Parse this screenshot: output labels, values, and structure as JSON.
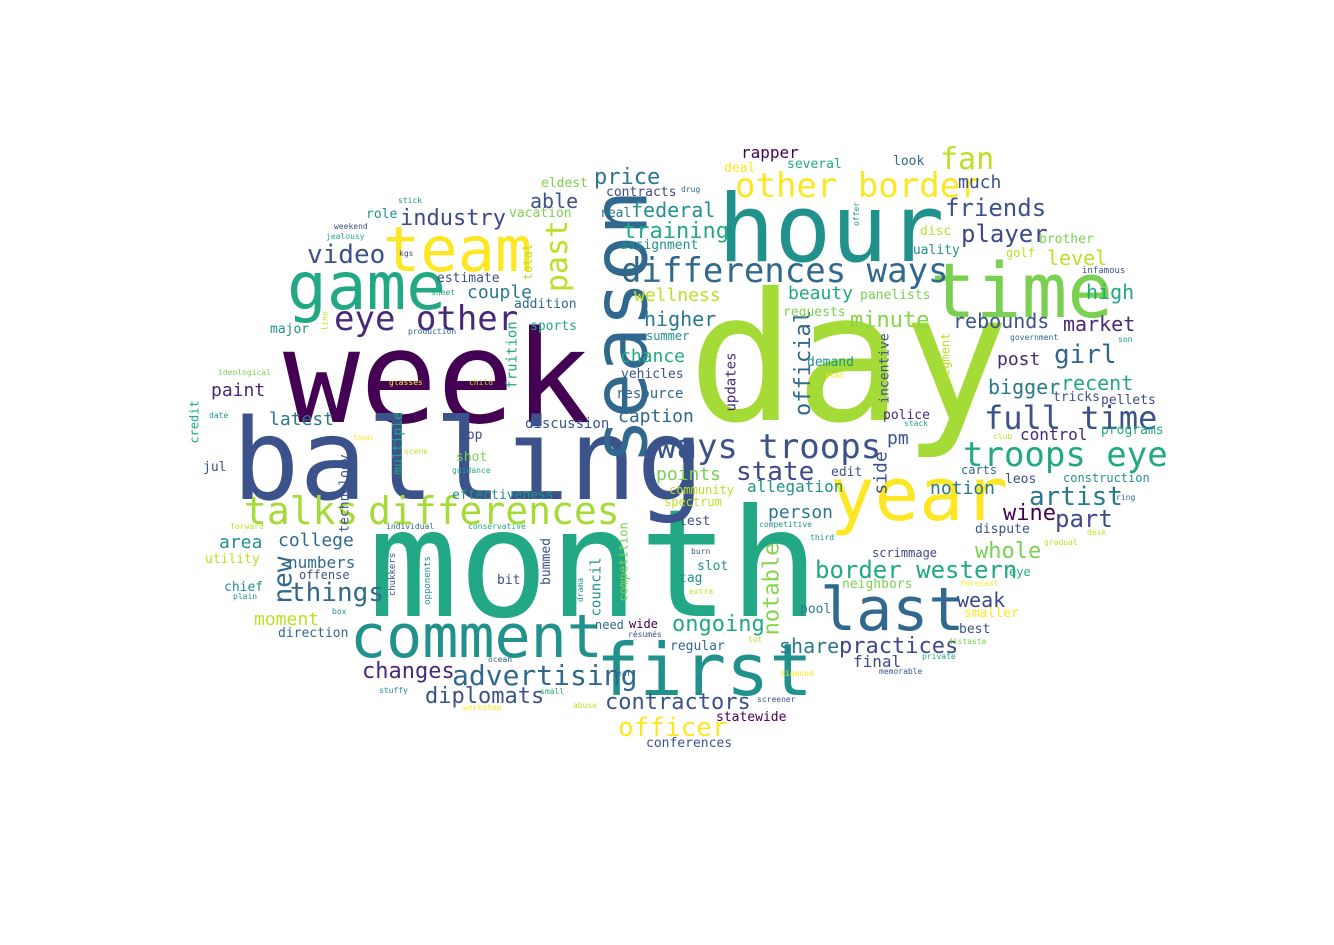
{
  "colors": {
    "background": "#ffffff"
  },
  "words": [
    {
      "text": "day",
      "color": "#a5db36"
    },
    {
      "text": "month",
      "color": "#22a884"
    },
    {
      "text": "week",
      "color": "#440154"
    },
    {
      "text": "balling",
      "color": "#3b528b"
    },
    {
      "text": "hour",
      "color": "#21918c"
    },
    {
      "text": "season",
      "color": "#31688e"
    },
    {
      "text": "year",
      "color": "#fde725"
    },
    {
      "text": "time",
      "color": "#7ad151"
    },
    {
      "text": "game",
      "color": "#22a884"
    },
    {
      "text": "team",
      "color": "#fde725"
    },
    {
      "text": "comment",
      "color": "#21918c"
    },
    {
      "text": "first",
      "color": "#21918c"
    },
    {
      "text": "last",
      "color": "#31688e"
    },
    {
      "text": "differences ways",
      "color": "#31688e"
    },
    {
      "text": "differences",
      "color": "#a5db36"
    },
    {
      "text": "talks",
      "color": "#a5db36"
    },
    {
      "text": "ways troops",
      "color": "#3b528b"
    },
    {
      "text": "troops eye",
      "color": "#22a884"
    },
    {
      "text": "eye other",
      "color": "#482878"
    },
    {
      "text": "other border",
      "color": "#fde725"
    },
    {
      "text": "full time",
      "color": "#3b528b"
    },
    {
      "text": "border western",
      "color": "#22a884"
    },
    {
      "text": "advertising",
      "color": "#31688e"
    },
    {
      "text": "past",
      "color": "#bddf26"
    },
    {
      "text": "fan",
      "color": "#bddf26"
    },
    {
      "text": "industry",
      "color": "#3e4989"
    },
    {
      "text": "video",
      "color": "#3b528b"
    },
    {
      "text": "things",
      "color": "#31688e"
    },
    {
      "text": "new",
      "color": "#31688e"
    },
    {
      "text": "officer",
      "color": "#fde725"
    },
    {
      "text": "diplomats",
      "color": "#3b528b"
    },
    {
      "text": "contractors",
      "color": "#3b528b"
    },
    {
      "text": "artist",
      "color": "#2a788e"
    },
    {
      "text": "state",
      "color": "#3e4989"
    },
    {
      "text": "friends",
      "color": "#3b528b"
    },
    {
      "text": "player",
      "color": "#3e4989"
    },
    {
      "text": "girl",
      "color": "#31688e"
    },
    {
      "text": "part",
      "color": "#3e4989"
    },
    {
      "text": "wine",
      "color": "#440154"
    },
    {
      "text": "whole",
      "color": "#7ad151"
    },
    {
      "text": "weak",
      "color": "#3e4989"
    },
    {
      "text": "ongoing",
      "color": "#22a884"
    },
    {
      "text": "practices",
      "color": "#3e4989"
    },
    {
      "text": "changes",
      "color": "#482878"
    },
    {
      "text": "share",
      "color": "#2a788e"
    },
    {
      "text": "notable",
      "color": "#86d549"
    },
    {
      "text": "official",
      "color": "#31688e"
    },
    {
      "text": "minute",
      "color": "#86d549"
    },
    {
      "text": "market",
      "color": "#482878"
    },
    {
      "text": "rebounds",
      "color": "#3b528b"
    },
    {
      "text": "higher",
      "color": "#2a788e"
    },
    {
      "text": "training",
      "color": "#22a884"
    },
    {
      "text": "federal",
      "color": "#21918c"
    },
    {
      "text": "price",
      "color": "#2a788e"
    },
    {
      "text": "able",
      "color": "#3b528b"
    },
    {
      "text": "couple",
      "color": "#2a788e"
    },
    {
      "text": "wellness",
      "color": "#bddf26"
    },
    {
      "text": "beauty",
      "color": "#22a884"
    },
    {
      "text": "level",
      "color": "#bddf26"
    },
    {
      "text": "high",
      "color": "#22a884"
    },
    {
      "text": "bigger",
      "color": "#2a788e"
    },
    {
      "text": "recent",
      "color": "#22a884"
    },
    {
      "text": "post",
      "color": "#482878"
    },
    {
      "text": "pm",
      "color": "#3b528b"
    },
    {
      "text": "notion",
      "color": "#2a788e"
    },
    {
      "text": "control",
      "color": "#482878"
    },
    {
      "text": "person",
      "color": "#2a788e"
    },
    {
      "text": "allegation",
      "color": "#21918c"
    },
    {
      "text": "points",
      "color": "#7ad151"
    },
    {
      "text": "chance",
      "color": "#22a884"
    },
    {
      "text": "caption",
      "color": "#31688e"
    },
    {
      "text": "much",
      "color": "#3b528b"
    },
    {
      "text": "rapper",
      "color": "#440154"
    },
    {
      "text": "side",
      "color": "#3b528b"
    },
    {
      "text": "latest",
      "color": "#2a788e"
    },
    {
      "text": "paint",
      "color": "#482878"
    },
    {
      "text": "college",
      "color": "#31688e"
    },
    {
      "text": "area",
      "color": "#21918c"
    },
    {
      "text": "numbers",
      "color": "#31688e"
    },
    {
      "text": "moment",
      "color": "#bddf26"
    },
    {
      "text": "final",
      "color": "#3e4989"
    },
    {
      "text": "sports",
      "color": "#22a884"
    },
    {
      "text": "fruition",
      "color": "#22a884"
    },
    {
      "text": "updates",
      "color": "#482878"
    },
    {
      "text": "incentive",
      "color": "#3b528b"
    },
    {
      "text": "segment",
      "color": "#bddf26"
    },
    {
      "text": "technology",
      "color": "#3b528b"
    },
    {
      "text": "multiple",
      "color": "#22a884"
    },
    {
      "text": "credit",
      "color": "#22a884"
    },
    {
      "text": "bummed",
      "color": "#3b528b"
    },
    {
      "text": "council",
      "color": "#21918c"
    },
    {
      "text": "competition",
      "color": "#7ad151"
    },
    {
      "text": "total",
      "color": "#bddf26"
    },
    {
      "text": "chukkers",
      "color": "#3b528b"
    },
    {
      "text": "opponents",
      "color": "#21918c"
    },
    {
      "text": "drama",
      "color": "#21918c"
    },
    {
      "text": "offer",
      "color": "#21918c"
    },
    {
      "text": "line",
      "color": "#bddf26"
    },
    {
      "text": "eldest",
      "color": "#7ad151"
    },
    {
      "text": "contracts",
      "color": "#3e4989"
    },
    {
      "text": "vacation",
      "color": "#7ad151"
    },
    {
      "text": "real",
      "color": "#2a788e"
    },
    {
      "text": "assignment",
      "color": "#21918c"
    },
    {
      "text": "role",
      "color": "#21918c"
    },
    {
      "text": "estimate",
      "color": "#3b528b"
    },
    {
      "text": "addition",
      "color": "#31688e"
    },
    {
      "text": "major",
      "color": "#21918c"
    },
    {
      "text": "resource",
      "color": "#31688e"
    },
    {
      "text": "vehicles",
      "color": "#3b528b"
    },
    {
      "text": "discussion",
      "color": "#3b528b"
    },
    {
      "text": "top",
      "color": "#3e4989"
    },
    {
      "text": "shot",
      "color": "#7ad151"
    },
    {
      "text": "effectiveness",
      "color": "#21918c"
    },
    {
      "text": "community",
      "color": "#bddf26"
    },
    {
      "text": "spectrum",
      "color": "#bddf26"
    },
    {
      "text": "edit",
      "color": "#3b528b"
    },
    {
      "text": "test",
      "color": "#3b528b"
    },
    {
      "text": "tag",
      "color": "#21918c"
    },
    {
      "text": "slot",
      "color": "#21918c"
    },
    {
      "text": "bit",
      "color": "#3b528b"
    },
    {
      "text": "need",
      "color": "#31688e"
    },
    {
      "text": "wide",
      "color": "#440154"
    },
    {
      "text": "regular",
      "color": "#31688e"
    },
    {
      "text": "pool",
      "color": "#2a788e"
    },
    {
      "text": "best",
      "color": "#3b528b"
    },
    {
      "text": "dispute",
      "color": "#3b528b"
    },
    {
      "text": "scrimmage",
      "color": "#3e4989"
    },
    {
      "text": "neighbors",
      "color": "#7ad151"
    },
    {
      "text": "police",
      "color": "#482878"
    },
    {
      "text": "leos",
      "color": "#3e4989"
    },
    {
      "text": "carts",
      "color": "#31688e"
    },
    {
      "text": "construction",
      "color": "#21918c"
    },
    {
      "text": "tricks",
      "color": "#3b528b"
    },
    {
      "text": "pellets",
      "color": "#3e4989"
    },
    {
      "text": "programs",
      "color": "#22a884"
    },
    {
      "text": "demand",
      "color": "#21918c"
    },
    {
      "text": "requests",
      "color": "#7ad151"
    },
    {
      "text": "summer",
      "color": "#21918c"
    },
    {
      "text": "quality",
      "color": "#21918c"
    },
    {
      "text": "golf",
      "color": "#bddf26"
    },
    {
      "text": "brother",
      "color": "#7ad151"
    },
    {
      "text": "panelists",
      "color": "#7ad151"
    },
    {
      "text": "disc",
      "color": "#bddf26"
    },
    {
      "text": "look",
      "color": "#31688e"
    },
    {
      "text": "several",
      "color": "#22a884"
    },
    {
      "text": "deal",
      "color": "#fde725"
    },
    {
      "text": "direction",
      "color": "#31688e"
    },
    {
      "text": "offense",
      "color": "#3b528b"
    },
    {
      "text": "chief",
      "color": "#21918c"
    },
    {
      "text": "utility",
      "color": "#bddf26"
    },
    {
      "text": "jul",
      "color": "#3b528b"
    },
    {
      "text": "statewide",
      "color": "#440154"
    },
    {
      "text": "conferences",
      "color": "#3b528b"
    },
    {
      "text": "smaller",
      "color": "#fde725"
    },
    {
      "text": "eye",
      "color": "#22a884"
    },
    {
      "text": "infamous",
      "color": "#3b528b"
    },
    {
      "text": "son",
      "color": "#21918c"
    },
    {
      "text": "government",
      "color": "#31688e"
    },
    {
      "text": "ring",
      "color": "#31688e"
    },
    {
      "text": "gradual",
      "color": "#bddf26"
    },
    {
      "text": "desk",
      "color": "#bddf26"
    },
    {
      "text": "club",
      "color": "#bddf26"
    },
    {
      "text": "stack",
      "color": "#22a884"
    },
    {
      "text": "stat",
      "color": "#fde725"
    },
    {
      "text": "third",
      "color": "#21918c"
    },
    {
      "text": "competitive",
      "color": "#21918c"
    },
    {
      "text": "forecast",
      "color": "#fde725"
    },
    {
      "text": "distaste",
      "color": "#7ad151"
    },
    {
      "text": "private",
      "color": "#22a884"
    },
    {
      "text": "memorable",
      "color": "#3b528b"
    },
    {
      "text": "diamond",
      "color": "#fde725"
    },
    {
      "text": "screener",
      "color": "#3b528b"
    },
    {
      "text": "lot",
      "color": "#bddf26"
    },
    {
      "text": "résumés",
      "color": "#3b528b"
    },
    {
      "text": "ocean",
      "color": "#31688e"
    },
    {
      "text": "ear",
      "color": "#31688e"
    },
    {
      "text": "abuse",
      "color": "#bddf26"
    },
    {
      "text": "small",
      "color": "#22a884"
    },
    {
      "text": "workshop",
      "color": "#fde725"
    },
    {
      "text": "stuffy",
      "color": "#21918c"
    },
    {
      "text": "plain",
      "color": "#21918c"
    },
    {
      "text": "box",
      "color": "#21918c"
    },
    {
      "text": "forward",
      "color": "#bddf26"
    },
    {
      "text": "individual",
      "color": "#31688e"
    },
    {
      "text": "conservative",
      "color": "#22a884"
    },
    {
      "text": "guidance",
      "color": "#22a884"
    },
    {
      "text": "scene",
      "color": "#bddf26"
    },
    {
      "text": "town",
      "color": "#fde725"
    },
    {
      "text": "date",
      "color": "#21918c"
    },
    {
      "text": "ideological",
      "color": "#7ad151"
    },
    {
      "text": "glasses",
      "color": "#fde725"
    },
    {
      "text": "child",
      "color": "#bddf26"
    },
    {
      "text": "production",
      "color": "#31688e"
    },
    {
      "text": "sheet",
      "color": "#22a884"
    },
    {
      "text": "kgs",
      "color": "#3e4989"
    },
    {
      "text": "jealousy",
      "color": "#22a884"
    },
    {
      "text": "weekend",
      "color": "#3b528b"
    },
    {
      "text": "stick",
      "color": "#21918c"
    },
    {
      "text": "drug",
      "color": "#31688e"
    },
    {
      "text": "burn",
      "color": "#3b528b"
    },
    {
      "text": "extra",
      "color": "#bddf26"
    }
  ]
}
